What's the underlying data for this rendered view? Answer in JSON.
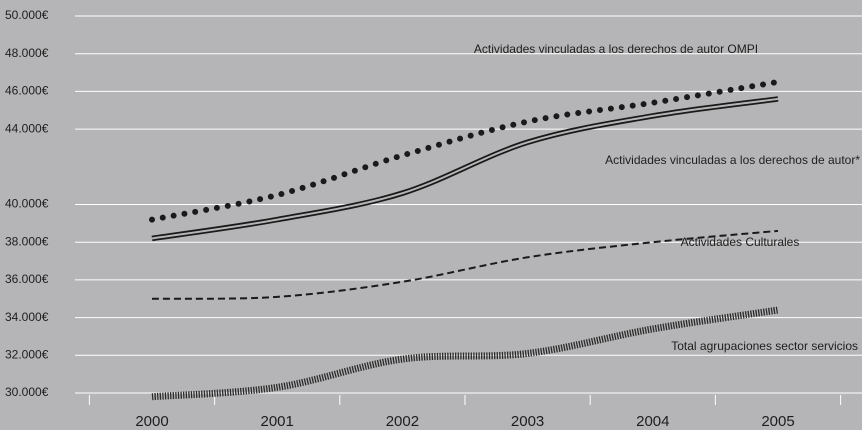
{
  "chart_data": {
    "type": "line",
    "categories": [
      "2000",
      "2001",
      "2002",
      "2003",
      "2004",
      "2005"
    ],
    "series": [
      {
        "name": "Actividades vinculadas a los derechos de autor OMPI",
        "color": "#1a1a1a",
        "style": "dotted",
        "values": [
          39200,
          40500,
          42600,
          44400,
          45400,
          46500
        ]
      },
      {
        "name": "Actividades vinculadas a los derechos de autor*",
        "color": "#1a1a1a",
        "style": "double",
        "values": [
          38200,
          39200,
          40600,
          43300,
          44700,
          45600
        ]
      },
      {
        "name": "Actividades Culturales",
        "color": "#1a1a1a",
        "style": "dashed",
        "values": [
          35000,
          35100,
          35900,
          37200,
          38000,
          38600
        ]
      },
      {
        "name": "Total agrupaciones sector servicios",
        "color": "#2a2a2a",
        "style": "hatched",
        "values": [
          29800,
          30300,
          31800,
          32100,
          33400,
          34400
        ]
      }
    ],
    "ylim": [
      30000,
      50000
    ],
    "yticks": [
      {
        "value": 30000,
        "label": "30.000€"
      },
      {
        "value": 32000,
        "label": "32.000€"
      },
      {
        "value": 34000,
        "label": "34.000€"
      },
      {
        "value": 36000,
        "label": "36.000€"
      },
      {
        "value": 38000,
        "label": "38.000€"
      },
      {
        "value": 40000,
        "label": "40.000€"
      },
      {
        "value": 44000,
        "label": "44.000€"
      },
      {
        "value": 46000,
        "label": "46.000€"
      },
      {
        "value": 48000,
        "label": "48.000€"
      },
      {
        "value": 50000,
        "label": "50.000€"
      }
    ],
    "grid": true
  }
}
